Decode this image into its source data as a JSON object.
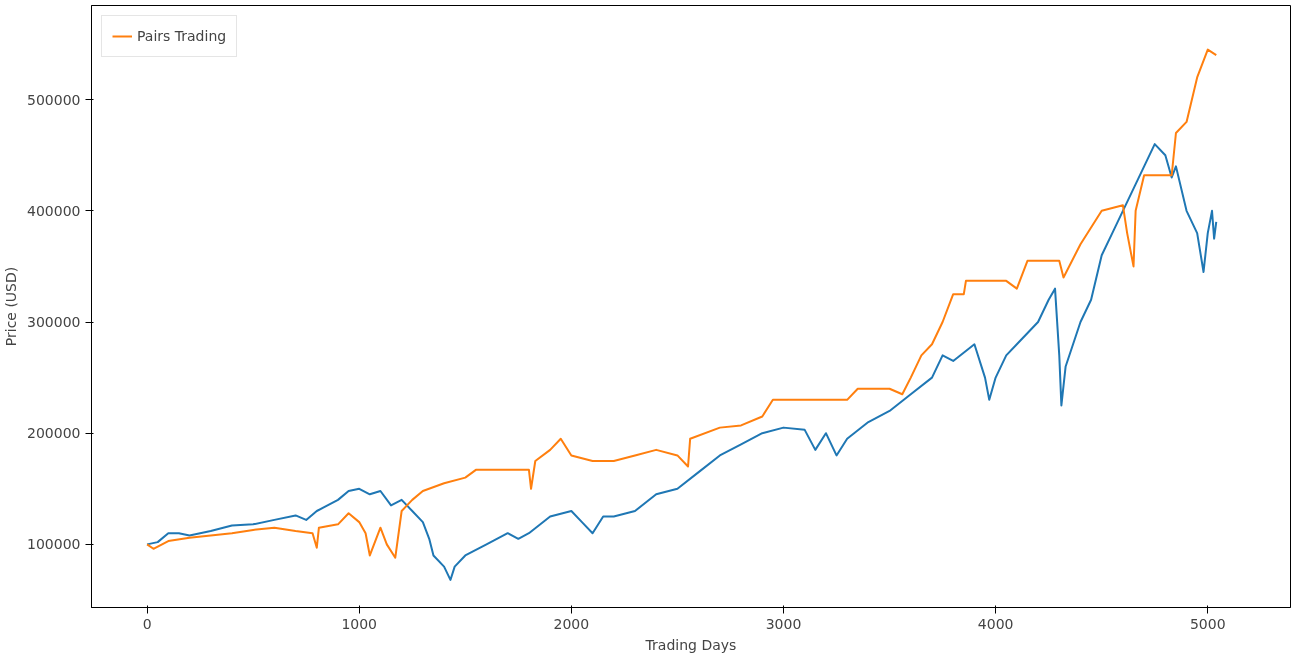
{
  "chart_data": {
    "type": "line",
    "xlabel": "Trading Days",
    "ylabel": "Price (USD)",
    "xlim": [
      -262,
      5390
    ],
    "ylim": [
      43200,
      584700
    ],
    "xticks": [
      0,
      1000,
      2000,
      3000,
      4000,
      5000
    ],
    "yticks": [
      100000,
      200000,
      300000,
      400000,
      500000
    ],
    "grid": false,
    "legend": "top left",
    "series": [
      {
        "color": "#1f77b4",
        "x": [
          0,
          50,
          100,
          150,
          200,
          300,
          400,
          500,
          600,
          700,
          750,
          800,
          900,
          950,
          1000,
          1050,
          1100,
          1150,
          1200,
          1250,
          1300,
          1330,
          1350,
          1400,
          1430,
          1450,
          1500,
          1600,
          1700,
          1750,
          1800,
          1900,
          2000,
          2050,
          2100,
          2150,
          2200,
          2300,
          2400,
          2500,
          2600,
          2700,
          2800,
          2900,
          3000,
          3100,
          3150,
          3200,
          3250,
          3300,
          3400,
          3500,
          3600,
          3700,
          3750,
          3800,
          3900,
          3950,
          3970,
          4000,
          4050,
          4100,
          4200,
          4250,
          4280,
          4300,
          4310,
          4330,
          4400,
          4450,
          4500,
          4550,
          4600,
          4650,
          4700,
          4750,
          4800,
          4830,
          4850,
          4900,
          4950,
          4980,
          5000,
          5020,
          5030,
          5040
        ],
        "values": [
          100000,
          102000,
          110000,
          110000,
          108000,
          112000,
          117000,
          118000,
          122000,
          126000,
          122000,
          130000,
          140000,
          148000,
          150000,
          145000,
          148000,
          135000,
          140000,
          130000,
          120000,
          105000,
          90000,
          80000,
          68000,
          80000,
          90000,
          100000,
          110000,
          105000,
          110000,
          125000,
          130000,
          120000,
          110000,
          125000,
          125000,
          130000,
          145000,
          150000,
          165000,
          180000,
          190000,
          200000,
          205000,
          203000,
          185000,
          200000,
          180000,
          195000,
          210000,
          220000,
          235000,
          250000,
          270000,
          265000,
          280000,
          250000,
          230000,
          250000,
          270000,
          280000,
          300000,
          320000,
          330000,
          270000,
          225000,
          260000,
          300000,
          320000,
          360000,
          380000,
          400000,
          420000,
          440000,
          460000,
          450000,
          430000,
          440000,
          400000,
          380000,
          345000,
          380000,
          400000,
          375000,
          390000
        ]
      },
      {
        "name": "Pairs Trading",
        "color": "#ff7f0e",
        "x": [
          0,
          30,
          100,
          200,
          300,
          400,
          500,
          600,
          700,
          780,
          800,
          810,
          900,
          950,
          1000,
          1030,
          1050,
          1100,
          1130,
          1170,
          1200,
          1250,
          1300,
          1400,
          1500,
          1550,
          1800,
          1810,
          1830,
          1900,
          1950,
          2000,
          2100,
          2200,
          2300,
          2400,
          2500,
          2550,
          2560,
          2700,
          2800,
          2900,
          2950,
          3300,
          3350,
          3500,
          3560,
          3600,
          3650,
          3700,
          3750,
          3800,
          3850,
          3860,
          4050,
          4100,
          4150,
          4300,
          4320,
          4400,
          4500,
          4600,
          4620,
          4650,
          4660,
          4700,
          4830,
          4850,
          4900,
          4950,
          5000,
          5040
        ],
        "values": [
          100000,
          96000,
          103000,
          106000,
          108000,
          110000,
          113000,
          115000,
          112000,
          110000,
          97000,
          115000,
          118000,
          128000,
          120000,
          110000,
          90000,
          115000,
          100000,
          88000,
          130000,
          140000,
          148000,
          155000,
          160000,
          167000,
          167000,
          150000,
          175000,
          185000,
          195000,
          180000,
          175000,
          175000,
          180000,
          185000,
          180000,
          170000,
          195000,
          205000,
          207000,
          215000,
          230000,
          230000,
          240000,
          240000,
          235000,
          250000,
          270000,
          280000,
          300000,
          325000,
          325000,
          337000,
          337000,
          330000,
          355000,
          355000,
          340000,
          370000,
          400000,
          405000,
          380000,
          350000,
          400000,
          432000,
          432000,
          470000,
          480000,
          520000,
          545000,
          540000
        ]
      }
    ]
  }
}
